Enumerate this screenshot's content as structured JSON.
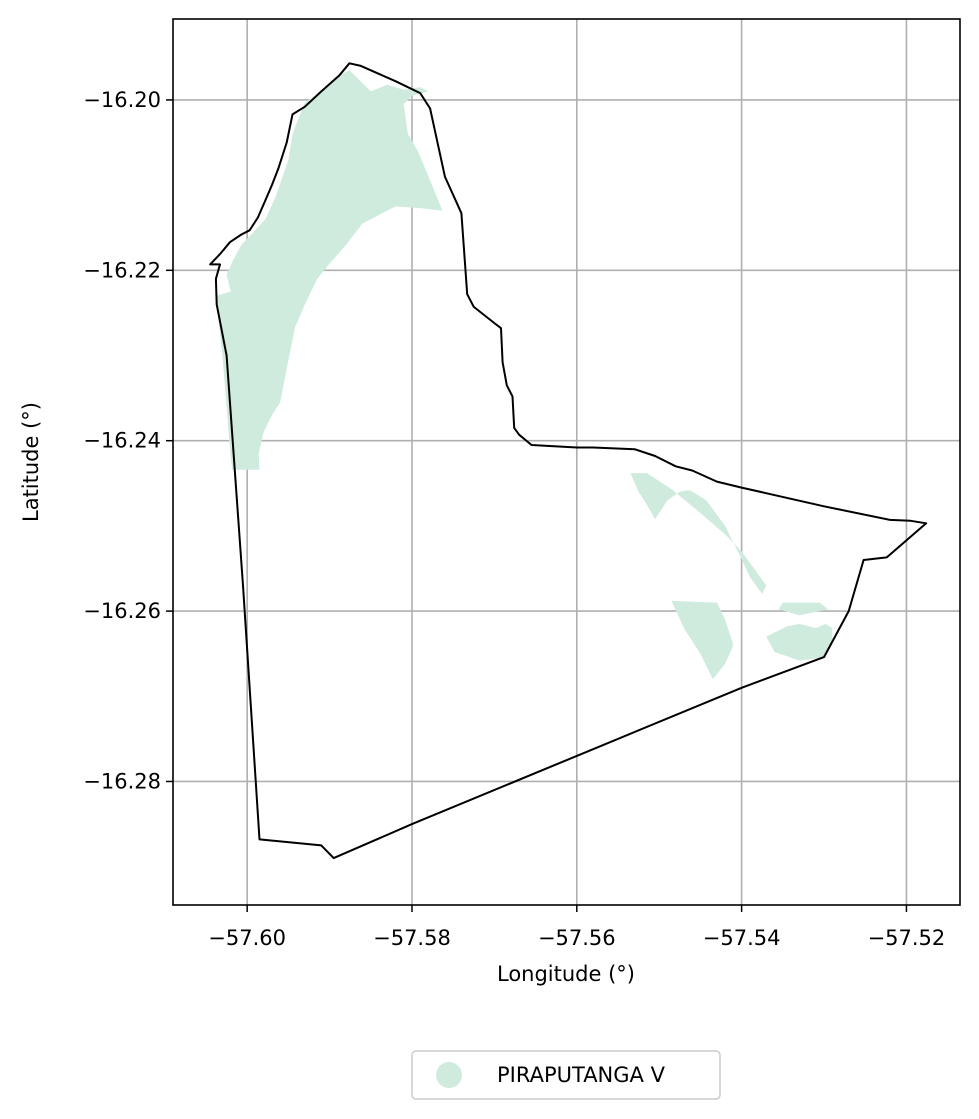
{
  "chart_data": {
    "type": "map",
    "xlabel": "Longitude (°)",
    "ylabel": "Latitude (°)",
    "xlim": [
      -57.609,
      -57.5135
    ],
    "ylim": [
      -16.2945,
      -16.1905
    ],
    "xticks": [
      -57.6,
      -57.58,
      -57.56,
      -57.54,
      -57.52
    ],
    "yticks": [
      -16.2,
      -16.22,
      -16.24,
      -16.26,
      -16.28
    ],
    "xtick_labels": [
      "−57.60",
      "−57.58",
      "−57.56",
      "−57.54",
      "−57.52"
    ],
    "ytick_labels": [
      "−16.20",
      "−16.22",
      "−16.24",
      "−16.26",
      "−16.28"
    ],
    "grid": true,
    "legend": {
      "placement": "bottom-center, below axes",
      "entries": [
        {
          "name": "PIRAPUTANGA V",
          "color": "#cfebdd"
        }
      ]
    },
    "colors": {
      "fill": "#cfebdd",
      "boundary": "#000000",
      "grid": "#b0b0b0"
    },
    "boundary": [
      [
        -57.6045,
        -16.2193
      ],
      [
        -57.6033,
        -16.2181
      ],
      [
        -57.6021,
        -16.2167
      ],
      [
        -57.6007,
        -16.2158
      ],
      [
        -57.5997,
        -16.2153
      ],
      [
        -57.5987,
        -16.2138
      ],
      [
        -57.5978,
        -16.2118
      ],
      [
        -57.597,
        -16.21
      ],
      [
        -57.5962,
        -16.208
      ],
      [
        -57.5952,
        -16.205
      ],
      [
        -57.5945,
        -16.2017
      ],
      [
        -57.593,
        -16.2008
      ],
      [
        -57.591,
        -16.199
      ],
      [
        -57.5888,
        -16.1971
      ],
      [
        -57.5876,
        -16.1957
      ],
      [
        -57.5862,
        -16.196
      ],
      [
        -57.582,
        -16.1978
      ],
      [
        -57.579,
        -16.1992
      ],
      [
        -57.5778,
        -16.201
      ],
      [
        -57.576,
        -16.209
      ],
      [
        -57.574,
        -16.2133
      ],
      [
        -57.5733,
        -16.2228
      ],
      [
        -57.5725,
        -16.2243
      ],
      [
        -57.57,
        -16.2262
      ],
      [
        -57.5692,
        -16.2268
      ],
      [
        -57.569,
        -16.2308
      ],
      [
        -57.5685,
        -16.2335
      ],
      [
        -57.5678,
        -16.2348
      ],
      [
        -57.5676,
        -16.2385
      ],
      [
        -57.567,
        -16.2393
      ],
      [
        -57.5655,
        -16.2405
      ],
      [
        -57.56,
        -16.2408
      ],
      [
        -57.558,
        -16.2408
      ],
      [
        -57.553,
        -16.241
      ],
      [
        -57.5505,
        -16.2418
      ],
      [
        -57.548,
        -16.243
      ],
      [
        -57.546,
        -16.2435
      ],
      [
        -57.543,
        -16.2448
      ],
      [
        -57.54,
        -16.2455
      ],
      [
        -57.53,
        -16.2477
      ],
      [
        -57.522,
        -16.2493
      ],
      [
        -57.5195,
        -16.2494
      ],
      [
        -57.5176,
        -16.2497
      ],
      [
        -57.5224,
        -16.2537
      ],
      [
        -57.5252,
        -16.254
      ],
      [
        -57.527,
        -16.26
      ],
      [
        -57.53,
        -16.2654
      ],
      [
        -57.54,
        -16.269
      ],
      [
        -57.56,
        -16.277
      ],
      [
        -57.58,
        -16.285
      ],
      [
        -57.5895,
        -16.289
      ],
      [
        -57.591,
        -16.2875
      ],
      [
        -57.5985,
        -16.2868
      ],
      [
        -57.6005,
        -16.257
      ],
      [
        -57.6025,
        -16.23
      ],
      [
        -57.6037,
        -16.224
      ],
      [
        -57.6038,
        -16.221
      ],
      [
        -57.6033,
        -16.2193
      ],
      [
        -57.6045,
        -16.2193
      ]
    ],
    "fill_polygons": [
      [
        [
          -57.6038,
          -16.223
        ],
        [
          -57.603,
          -16.23
        ],
        [
          -57.602,
          -16.242
        ],
        [
          -57.6018,
          -16.2434
        ],
        [
          -57.5985,
          -16.2434
        ],
        [
          -57.5986,
          -16.2415
        ],
        [
          -57.598,
          -16.239
        ],
        [
          -57.597,
          -16.237
        ],
        [
          -57.596,
          -16.2355
        ],
        [
          -57.5954,
          -16.2325
        ],
        [
          -57.5942,
          -16.2267
        ],
        [
          -57.593,
          -16.224
        ],
        [
          -57.5915,
          -16.221
        ],
        [
          -57.5898,
          -16.219
        ],
        [
          -57.588,
          -16.217
        ],
        [
          -57.586,
          -16.2145
        ],
        [
          -57.582,
          -16.2125
        ],
        [
          -57.579,
          -16.2127
        ],
        [
          -57.5763,
          -16.213
        ],
        [
          -57.578,
          -16.209
        ],
        [
          -57.5793,
          -16.206
        ],
        [
          -57.5805,
          -16.204
        ],
        [
          -57.581,
          -16.2005
        ],
        [
          -57.58,
          -16.1995
        ],
        [
          -57.578,
          -16.199
        ],
        [
          -57.579,
          -16.1985
        ],
        [
          -57.581,
          -16.1988
        ],
        [
          -57.583,
          -16.1982
        ],
        [
          -57.585,
          -16.199
        ],
        [
          -57.5876,
          -16.1965
        ],
        [
          -57.589,
          -16.1972
        ],
        [
          -57.591,
          -16.199
        ],
        [
          -57.593,
          -16.2003
        ],
        [
          -57.5937,
          -16.202
        ],
        [
          -57.5945,
          -16.204
        ],
        [
          -57.595,
          -16.207
        ],
        [
          -57.5957,
          -16.209
        ],
        [
          -57.5966,
          -16.2115
        ],
        [
          -57.5978,
          -16.214
        ],
        [
          -57.5995,
          -16.2158
        ],
        [
          -57.6007,
          -16.217
        ],
        [
          -57.6018,
          -16.219
        ],
        [
          -57.6025,
          -16.2205
        ],
        [
          -57.602,
          -16.2225
        ]
      ],
      [
        [
          -57.5535,
          -16.2438
        ],
        [
          -57.5525,
          -16.246
        ],
        [
          -57.5515,
          -16.2475
        ],
        [
          -57.5505,
          -16.2492
        ],
        [
          -57.549,
          -16.247
        ],
        [
          -57.5475,
          -16.246
        ],
        [
          -57.5463,
          -16.2458
        ],
        [
          -57.5443,
          -16.247
        ],
        [
          -57.5433,
          -16.2483
        ],
        [
          -57.542,
          -16.25
        ],
        [
          -57.541,
          -16.252
        ],
        [
          -57.5402,
          -16.2535
        ],
        [
          -57.539,
          -16.256
        ],
        [
          -57.5375,
          -16.258
        ],
        [
          -57.537,
          -16.257
        ],
        [
          -57.5385,
          -16.255
        ],
        [
          -57.54,
          -16.253
        ],
        [
          -57.542,
          -16.251
        ],
        [
          -57.545,
          -16.2485
        ],
        [
          -57.5485,
          -16.2457
        ],
        [
          -57.5515,
          -16.2438
        ]
      ],
      [
        [
          -57.5485,
          -16.2588
        ],
        [
          -57.547,
          -16.262
        ],
        [
          -57.545,
          -16.265
        ],
        [
          -57.5435,
          -16.268
        ],
        [
          -57.542,
          -16.2662
        ],
        [
          -57.541,
          -16.264
        ],
        [
          -57.542,
          -16.261
        ],
        [
          -57.543,
          -16.259
        ]
      ],
      [
        [
          -57.533,
          -16.2615
        ],
        [
          -57.531,
          -16.262
        ],
        [
          -57.5298,
          -16.2615
        ],
        [
          -57.529,
          -16.262
        ],
        [
          -57.529,
          -16.264
        ],
        [
          -57.5302,
          -16.2655
        ],
        [
          -57.533,
          -16.2658
        ],
        [
          -57.536,
          -16.2648
        ],
        [
          -57.537,
          -16.263
        ],
        [
          -57.5345,
          -16.2618
        ]
      ],
      [
        [
          -57.535,
          -16.259
        ],
        [
          -57.5305,
          -16.259
        ],
        [
          -57.5295,
          -16.2598
        ],
        [
          -57.533,
          -16.2605
        ],
        [
          -57.5355,
          -16.2598
        ]
      ]
    ]
  }
}
